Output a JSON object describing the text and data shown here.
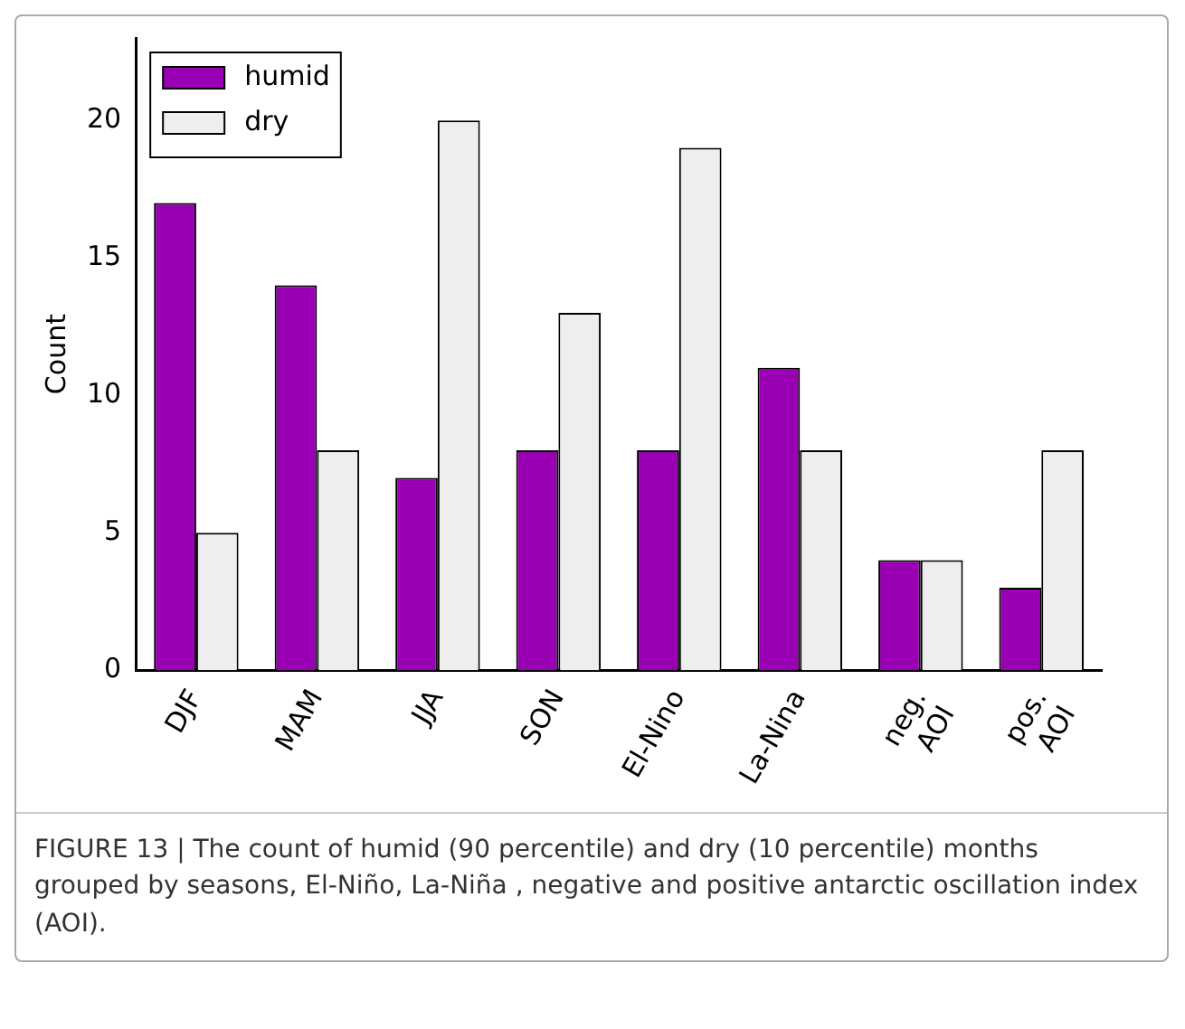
{
  "chart_data": {
    "type": "bar",
    "ylabel": "Count",
    "categories": [
      "DJF",
      "MAM",
      "JJA",
      "SON",
      "El-Nino",
      "La-Nina",
      "neg.\nAOI",
      "pos.\nAOI"
    ],
    "series": [
      {
        "name": "humid",
        "color": "#9900b3",
        "values": [
          17,
          14,
          7,
          8,
          8,
          11,
          4,
          3
        ]
      },
      {
        "name": "dry",
        "color": "#eeeeee",
        "values": [
          5,
          8,
          20,
          13,
          19,
          8,
          4,
          8
        ]
      }
    ],
    "ylim": [
      0,
      23
    ],
    "yticks": [
      0,
      5,
      10,
      15,
      20
    ],
    "grid": false,
    "legend": "top left",
    "annotations": [
      "FIGURE 13 | The count of humid (90 percentile) and dry (10 percentile) months grouped by seasons, El-Niño, La-Niña , negative and positive antarctic oscillation index (AOI)."
    ]
  }
}
